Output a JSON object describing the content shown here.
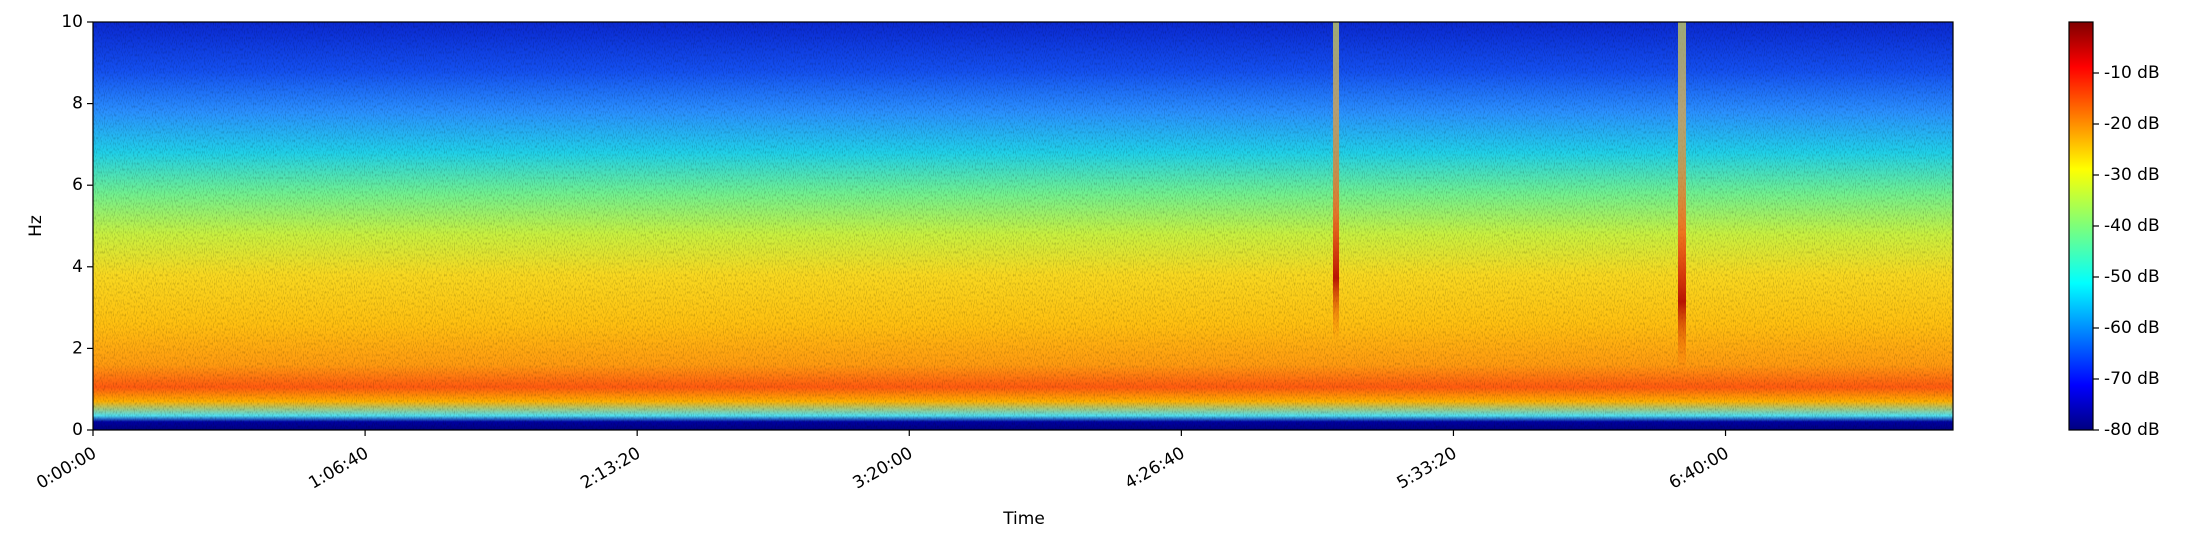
{
  "chart_data": {
    "type": "spectrogram",
    "xlabel": "Time",
    "ylabel": "Hz",
    "xlim": [
      0,
      27344
    ],
    "xticks": [
      {
        "value": 0,
        "label": "0:00:00"
      },
      {
        "value": 4000,
        "label": "1:06:40"
      },
      {
        "value": 8000,
        "label": "2:13:20"
      },
      {
        "value": 12000,
        "label": "3:20:00"
      },
      {
        "value": 16000,
        "label": "4:26:40"
      },
      {
        "value": 20000,
        "label": "5:33:20"
      },
      {
        "value": 24000,
        "label": "6:40:00"
      }
    ],
    "ylim": [
      0,
      10
    ],
    "yticks": [
      0,
      2,
      4,
      6,
      8,
      10
    ],
    "colormap": "jet",
    "colorbar": {
      "lim": [
        -80,
        0
      ],
      "ticks": [
        {
          "value": -80,
          "label": "-80 dB"
        },
        {
          "value": -70,
          "label": "-70 dB"
        },
        {
          "value": -60,
          "label": "-60 dB"
        },
        {
          "value": -50,
          "label": "-50 dB"
        },
        {
          "value": -40,
          "label": "-40 dB"
        },
        {
          "value": -30,
          "label": "-30 dB"
        },
        {
          "value": -20,
          "label": "-20 dB"
        },
        {
          "value": -10,
          "label": "-10 dB"
        }
      ]
    }
  }
}
